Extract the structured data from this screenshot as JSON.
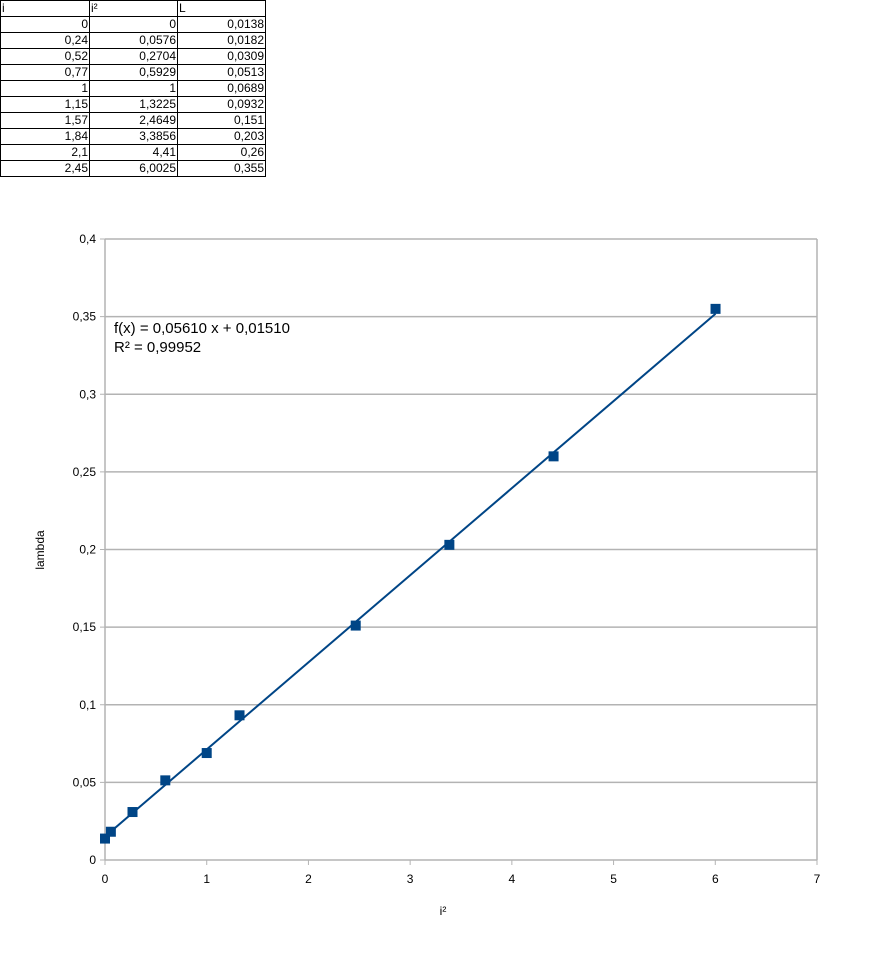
{
  "table": {
    "headers": [
      "i",
      "i²",
      "L"
    ],
    "rows": [
      [
        "0",
        "0",
        "0,0138"
      ],
      [
        "0,24",
        "0,0576",
        "0,0182"
      ],
      [
        "0,52",
        "0,2704",
        "0,0309"
      ],
      [
        "0,77",
        "0,5929",
        "0,0513"
      ],
      [
        "1",
        "1",
        "0,0689"
      ],
      [
        "1,15",
        "1,3225",
        "0,0932"
      ],
      [
        "1,57",
        "2,4649",
        "0,151"
      ],
      [
        "1,84",
        "3,3856",
        "0,203"
      ],
      [
        "2,1",
        "4,41",
        "0,26"
      ],
      [
        "2,45",
        "6,0025",
        "0,355"
      ]
    ]
  },
  "chart_data": {
    "type": "scatter",
    "xlabel": "i²",
    "ylabel": "lambda",
    "xlim": [
      0,
      7
    ],
    "ylim": [
      0,
      0.4
    ],
    "x_ticks": [
      0,
      1,
      2,
      3,
      4,
      5,
      6,
      7
    ],
    "x_tick_labels": [
      "0",
      "1",
      "2",
      "3",
      "4",
      "5",
      "6",
      "7"
    ],
    "y_ticks": [
      0,
      0.05,
      0.1,
      0.15,
      0.2,
      0.25,
      0.3,
      0.35,
      0.4
    ],
    "y_tick_labels": [
      "0",
      "0,05",
      "0,1",
      "0,15",
      "0,2",
      "0,25",
      "0,3",
      "0,35",
      "0,4"
    ],
    "grid": "horizontal",
    "series": [
      {
        "color": "#004586",
        "marker": "square",
        "x": [
          0,
          0.0576,
          0.2704,
          0.5929,
          1,
          1.3225,
          2.4649,
          3.3856,
          4.41,
          6.0025
        ],
        "y": [
          0.0138,
          0.0182,
          0.0309,
          0.0513,
          0.0689,
          0.0932,
          0.151,
          0.203,
          0.26,
          0.355
        ]
      }
    ],
    "trendline": {
      "type": "linear",
      "slope": 0.0561,
      "intercept": 0.0151,
      "color": "#004586",
      "equation_text": "f(x) = 0,05610 x + 0,01510",
      "r2_text": "R² = 0,99952"
    }
  }
}
